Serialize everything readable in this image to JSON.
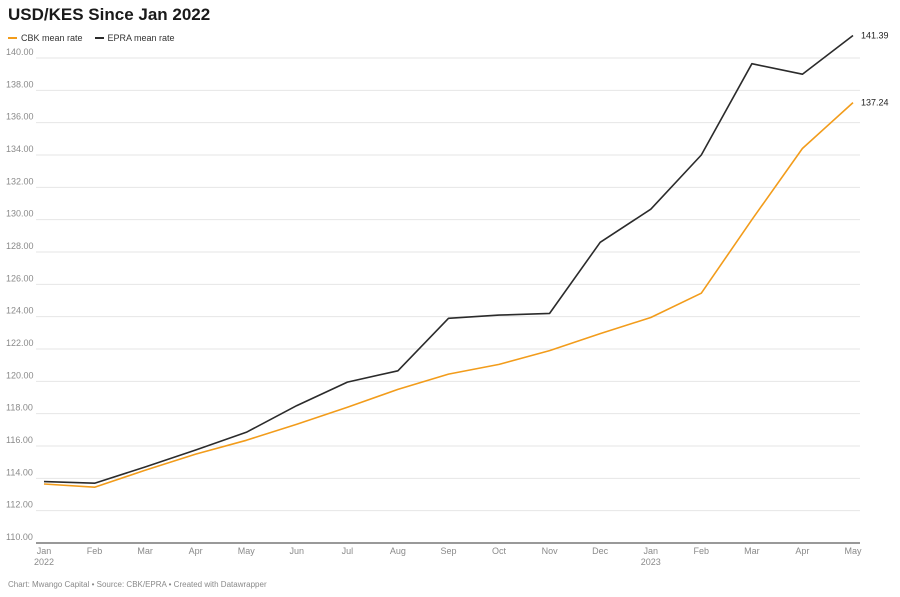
{
  "title": "USD/KES Since Jan 2022",
  "footer": "Chart: Mwango Capital • Source: CBK/EPRA • Created with Datawrapper",
  "colors": {
    "cbk": "#f29c1b",
    "epra": "#2b2b2b",
    "grid": "#e6e6e6",
    "axis": "#333333"
  },
  "chart_data": {
    "type": "line",
    "title": "USD/KES Since Jan 2022",
    "xlabel": "",
    "ylabel": "",
    "ylim": [
      110,
      141.39
    ],
    "yticks": [
      "110.00",
      "112.00",
      "114.00",
      "116.00",
      "118.00",
      "120.00",
      "122.00",
      "124.00",
      "126.00",
      "128.00",
      "130.00",
      "132.00",
      "134.00",
      "136.00",
      "138.00",
      "140.00"
    ],
    "categories": [
      {
        "label": "Jan",
        "sub": "2022"
      },
      {
        "label": "Feb",
        "sub": ""
      },
      {
        "label": "Mar",
        "sub": ""
      },
      {
        "label": "Apr",
        "sub": ""
      },
      {
        "label": "May",
        "sub": ""
      },
      {
        "label": "Jun",
        "sub": ""
      },
      {
        "label": "Jul",
        "sub": ""
      },
      {
        "label": "Aug",
        "sub": ""
      },
      {
        "label": "Sep",
        "sub": ""
      },
      {
        "label": "Oct",
        "sub": ""
      },
      {
        "label": "Nov",
        "sub": ""
      },
      {
        "label": "Dec",
        "sub": ""
      },
      {
        "label": "Jan",
        "sub": "2023"
      },
      {
        "label": "Feb",
        "sub": ""
      },
      {
        "label": "Mar",
        "sub": ""
      },
      {
        "label": "Apr",
        "sub": ""
      },
      {
        "label": "May",
        "sub": ""
      }
    ],
    "series": [
      {
        "name": "CBK mean rate",
        "key": "cbk",
        "values": [
          113.65,
          113.45,
          114.5,
          115.5,
          116.35,
          117.35,
          118.4,
          119.5,
          120.45,
          121.05,
          121.9,
          122.95,
          123.95,
          125.45,
          130.0,
          134.4,
          137.24
        ],
        "end_label": "137.24"
      },
      {
        "name": "EPRA mean rate",
        "key": "epra",
        "values": [
          113.8,
          113.7,
          114.7,
          115.75,
          116.85,
          118.5,
          119.95,
          120.65,
          123.9,
          124.1,
          124.2,
          128.6,
          130.65,
          134.0,
          139.65,
          139.0,
          141.39
        ],
        "end_label": "141.39"
      }
    ],
    "grid": true,
    "legend": "top-left"
  }
}
